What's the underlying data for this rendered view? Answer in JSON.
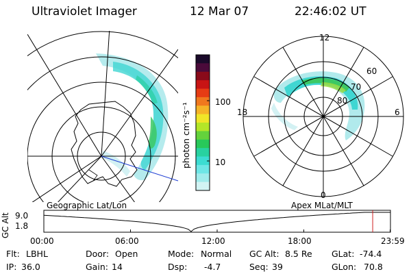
{
  "header": {
    "instrument": "Ultraviolet Imager",
    "date": "12 Mar 07",
    "time": "22:46:02 UT"
  },
  "left_panel": {
    "caption": "Geographic Lat/Lon"
  },
  "right_panel": {
    "caption": "Apex MLat/MLT",
    "mlt_labels": [
      "12",
      "18",
      "6",
      "0"
    ],
    "lat_labels": [
      "60",
      "70",
      "80"
    ]
  },
  "colorbar": {
    "title": "photon cm⁻²s⁻¹",
    "tick_labels": [
      "100",
      "10"
    ],
    "colors": [
      "#1a0a2a",
      "#4a0a3a",
      "#8a0a1a",
      "#c81414",
      "#e63c14",
      "#f0781e",
      "#f5b428",
      "#f0e628",
      "#b4e628",
      "#64d23c",
      "#28c85a",
      "#28d2a0",
      "#3cdcd2",
      "#6ee6e6",
      "#a0ecec",
      "#d2f4f4"
    ]
  },
  "timeline": {
    "ylabel": "GC Alt",
    "y_ticks": [
      "9.0",
      "1.8"
    ],
    "x_ticks": [
      "00:00",
      "06:00",
      "12:00",
      "18:00",
      "23:59"
    ],
    "x_tick_values_h": [
      0,
      6,
      12,
      18,
      23.98
    ],
    "current_time_h": 22.77,
    "min_time_h": 10.2,
    "marker_color": "#d02020"
  },
  "footer": {
    "row1": [
      {
        "label": "Flt:",
        "value": "LBHL"
      },
      {
        "label": "Door:",
        "value": "Open"
      },
      {
        "label": "Mode:",
        "value": "Normal"
      },
      {
        "label": "GC Alt:",
        "value": "8.5 Re"
      },
      {
        "label": "GLat:",
        "value": "-74.4"
      }
    ],
    "row2": [
      {
        "label": "IP:",
        "value": "36.0"
      },
      {
        "label": "Gain:",
        "value": "14"
      },
      {
        "label": "Dsp:",
        "value": "-4.7"
      },
      {
        "label": "Seq:",
        "value": "39"
      },
      {
        "label": "GLon:",
        "value": "70.8"
      }
    ]
  }
}
